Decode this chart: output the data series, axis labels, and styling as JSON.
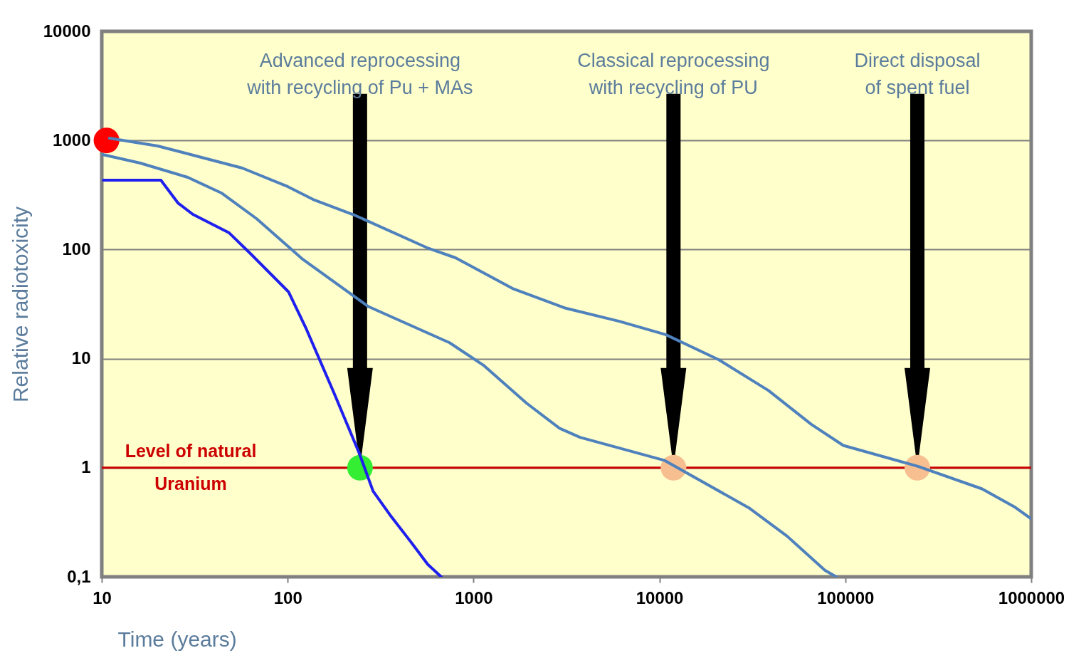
{
  "chart_data": {
    "type": "line",
    "xlabel": "Time (years)",
    "ylabel": "Relative radiotoxicity",
    "log": "xy",
    "grid": "y",
    "xlim": [
      10,
      1000000
    ],
    "xticks": [
      10,
      100,
      1000,
      10000,
      100000,
      1000000
    ],
    "ylim": [
      0.1,
      10000
    ],
    "yticks": [
      {
        "value": 0.1,
        "label": "0,1"
      },
      1,
      10,
      100,
      1000,
      10000
    ],
    "series": [
      {
        "color": "#4f81bd",
        "x": [
          11,
          20,
          57,
          100,
          137,
          233,
          561,
          800,
          1620,
          3130,
          6070,
          10800,
          20800,
          38600,
          65600,
          97500,
          246000,
          544000,
          809000,
          1000000
        ],
        "values": [
          1050,
          890,
          558,
          378,
          288,
          204,
          104,
          84,
          44,
          29,
          22,
          16.6,
          9.8,
          5.1,
          2.5,
          1.6,
          1.03,
          0.64,
          0.44,
          0.34
        ]
      },
      {
        "color": "#4f81bd",
        "x": [
          10.1,
          16.1,
          29,
          44,
          68,
          121,
          272,
          743,
          1130,
          1930,
          2900,
          3740,
          10600,
          30200,
          48600,
          77600,
          89400
        ],
        "values": [
          743,
          620,
          459,
          330,
          192,
          81,
          30,
          14,
          8.7,
          3.9,
          2.3,
          1.9,
          1.17,
          0.43,
          0.236,
          0.115,
          0.1
        ]
      },
      {
        "color": "#1f1fee",
        "x": [
          10.2,
          20.8,
          25.7,
          30.9,
          48.5,
          63,
          101,
          126,
          177,
          243,
          288,
          355,
          459,
          567,
          670
        ],
        "values": [
          432,
          432,
          267,
          210,
          142,
          92,
          41,
          18.7,
          4.9,
          1.35,
          0.61,
          0.37,
          0.21,
          0.13,
          0.1
        ]
      },
      {
        "type": "scatter",
        "marker": "circle",
        "x": [
          10.6,
          245,
          11900,
          244000
        ],
        "values": [
          1000,
          1,
          1,
          1
        ],
        "colors": [
          "#ff0000",
          "#33ee33",
          "#f7bf8f",
          "#f7bf8f"
        ]
      }
    ],
    "ref_lines": [
      {
        "axis": "y",
        "value": 1,
        "label": "Level of natural\nUranium",
        "color": "#cc0000"
      }
    ],
    "annotations": [
      "Advanced reprocessing\nwith recycling of Pu + MAs",
      "Classical reprocessing\nwith recycling of PU",
      "Direct disposal\nof spent fuel"
    ]
  }
}
